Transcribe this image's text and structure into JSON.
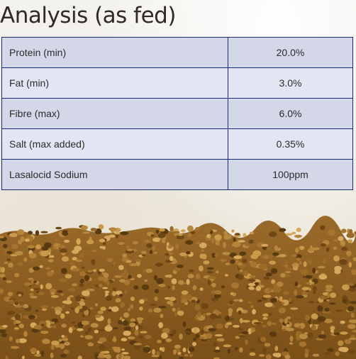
{
  "title": "Analysis (as fed)",
  "rows": [
    {
      "label": "Protein (min)",
      "value": "20.0%"
    },
    {
      "label": "Fat (min)",
      "value": "3.0%"
    },
    {
      "label": "Fibre (max)",
      "value": "6.0%"
    },
    {
      "label": "Salt (max added)",
      "value": "0.35%"
    },
    {
      "label": "Lasalocid Sodium",
      "value": "100ppm"
    }
  ],
  "colors": {
    "border": "#1a2a72",
    "row_dark": "#d3d7e8",
    "row_light": "#e3e6f2",
    "feed_base": "#8a5e22"
  }
}
